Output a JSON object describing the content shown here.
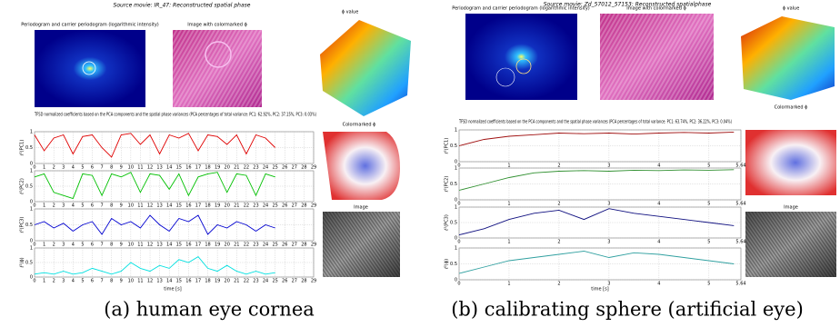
{
  "panels": [
    {
      "caption": "(a) human eye cornea",
      "title": "Source movie: IR_47: Reconstructed spatial phase",
      "periodogram_label": "Periodogram and carrier periodogram (logarithmic intensity)",
      "image_label": "Image with colormarked ϕ",
      "phi_label": "ϕ value",
      "colormarked_label": "Colormarked ϕ",
      "tfsd_text": "TFSD normalized coefficients based on the PCA components and the spatial phase variances (PCA percentages of total variance: PC1: 62.92%, PC2: 37.15%, PC3: 0.03%)",
      "image2_label": "Image",
      "chart_data": {
        "type": "line",
        "xlabel": "time [s]",
        "x": [
          0,
          1,
          2,
          3,
          4,
          5,
          6,
          7,
          8,
          9,
          10,
          11,
          12,
          13,
          14,
          15,
          16,
          17,
          18,
          19,
          20,
          21,
          22,
          23,
          24,
          25
        ],
        "xlim": [
          0,
          29
        ],
        "xticks": [
          0,
          1,
          2,
          3,
          4,
          5,
          6,
          7,
          8,
          9,
          10,
          11,
          12,
          13,
          14,
          15,
          16,
          17,
          18,
          19,
          20,
          21,
          22,
          23,
          24,
          25,
          26,
          27,
          28,
          29
        ],
        "ylim": [
          0,
          1
        ],
        "yticks": [
          0,
          0.5,
          1
        ],
        "grid": true,
        "series": [
          {
            "name": "ℓ²(PC1)",
            "color": "#e00000",
            "values": [
              0.9,
              0.4,
              0.8,
              0.9,
              0.3,
              0.85,
              0.9,
              0.5,
              0.2,
              0.9,
              0.95,
              0.6,
              0.9,
              0.3,
              0.9,
              0.8,
              0.95,
              0.4,
              0.9,
              0.85,
              0.6,
              0.9,
              0.3,
              0.9,
              0.8,
              0.5
            ]
          },
          {
            "name": "ℓ²(PC2)",
            "color": "#00c000",
            "values": [
              0.8,
              0.9,
              0.3,
              0.2,
              0.1,
              0.9,
              0.85,
              0.2,
              0.9,
              0.8,
              0.95,
              0.3,
              0.9,
              0.85,
              0.4,
              0.9,
              0.2,
              0.8,
              0.9,
              0.95,
              0.3,
              0.9,
              0.85,
              0.2,
              0.9,
              0.8
            ]
          },
          {
            "name": "ℓ²(PC3)",
            "color": "#0000d0",
            "values": [
              0.5,
              0.6,
              0.4,
              0.55,
              0.3,
              0.5,
              0.6,
              0.2,
              0.7,
              0.5,
              0.6,
              0.4,
              0.8,
              0.5,
              0.3,
              0.7,
              0.6,
              0.8,
              0.2,
              0.5,
              0.4,
              0.6,
              0.5,
              0.3,
              0.5,
              0.4
            ]
          },
          {
            "name": "ℓ²(ϕ)",
            "color": "#00e0e0",
            "values": [
              0.1,
              0.15,
              0.1,
              0.2,
              0.1,
              0.15,
              0.3,
              0.2,
              0.1,
              0.2,
              0.5,
              0.3,
              0.2,
              0.4,
              0.3,
              0.6,
              0.5,
              0.7,
              0.3,
              0.2,
              0.4,
              0.2,
              0.1,
              0.2,
              0.1,
              0.15
            ]
          }
        ]
      }
    },
    {
      "caption": "(b) calibrating sphere (artificial eye)",
      "title": "Source movie: Zd_57012_57153: Reconstructed spatialphase",
      "periodogram_label": "Periodogram and carrier periodogram (logarithmic intensity)",
      "image_label": "Image with colormarked ϕ",
      "phi_label": "ϕ value",
      "colormarked_label": "Colormarked ϕ",
      "tfsd_text": "TFSD normalized coefficients based on the PCA components and the spatial phase variances (PCA percentages of total variance: PC1: 63.74%, PC2: 36.22%, PC3: 0.04%)",
      "image2_label": "Image",
      "chart_data": {
        "type": "line",
        "xlabel": "time [s]",
        "x": [
          0,
          0.5,
          1,
          1.5,
          2,
          2.5,
          3,
          3.5,
          4,
          4.5,
          5,
          5.5
        ],
        "xlim": [
          0,
          5.64
        ],
        "xticks": [
          0,
          1,
          2,
          3,
          4,
          5,
          5.64
        ],
        "ylim": [
          0,
          1
        ],
        "yticks": [
          0,
          0.5,
          1
        ],
        "grid": true,
        "series": [
          {
            "name": "ℓ²(PC1)",
            "color": "#a01010",
            "values": [
              0.5,
              0.7,
              0.8,
              0.85,
              0.9,
              0.88,
              0.9,
              0.87,
              0.9,
              0.92,
              0.9,
              0.93
            ]
          },
          {
            "name": "ℓ²(PC2)",
            "color": "#309030",
            "values": [
              0.3,
              0.5,
              0.7,
              0.85,
              0.9,
              0.92,
              0.9,
              0.93,
              0.92,
              0.94,
              0.93,
              0.95
            ]
          },
          {
            "name": "ℓ²(PC3)",
            "color": "#101080",
            "values": [
              0.1,
              0.3,
              0.6,
              0.8,
              0.9,
              0.6,
              0.95,
              0.8,
              0.7,
              0.6,
              0.5,
              0.4
            ]
          },
          {
            "name": "ℓ²(ϕ)",
            "color": "#30a0a0",
            "values": [
              0.2,
              0.4,
              0.6,
              0.7,
              0.8,
              0.9,
              0.7,
              0.85,
              0.8,
              0.7,
              0.6,
              0.5
            ]
          }
        ]
      }
    }
  ]
}
